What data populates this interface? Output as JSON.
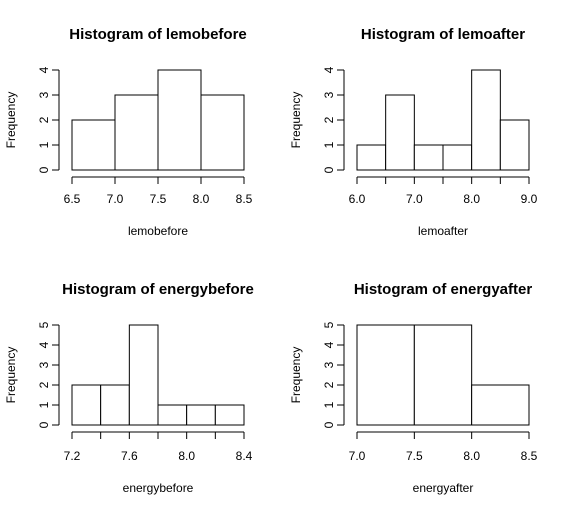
{
  "chart_data": [
    {
      "type": "bar",
      "title": "Histogram of lemobefore",
      "xlabel": "lemobefore",
      "ylabel": "Frequency",
      "bin_edges": [
        6.5,
        7.0,
        7.5,
        8.0,
        8.5
      ],
      "counts": [
        2,
        3,
        4,
        3
      ],
      "xticks": [
        6.5,
        7.0,
        7.5,
        8.0,
        8.5
      ],
      "xtick_labels": [
        "6.5",
        "7.0",
        "7.5",
        "8.0",
        "8.5"
      ],
      "yticks": [
        0,
        1,
        2,
        3,
        4
      ],
      "xlim": [
        6.5,
        8.5
      ],
      "ylim": [
        0,
        4
      ]
    },
    {
      "type": "bar",
      "title": "Histogram of lemoafter",
      "xlabel": "lemoafter",
      "ylabel": "Frequency",
      "bin_edges": [
        6.0,
        6.5,
        7.0,
        7.5,
        8.0,
        8.5,
        9.0
      ],
      "counts": [
        1,
        3,
        1,
        1,
        4,
        2
      ],
      "xticks": [
        6.0,
        6.5,
        7.0,
        7.5,
        8.0,
        8.5,
        9.0
      ],
      "xtick_labels": [
        "6.0",
        "",
        "7.0",
        "",
        "8.0",
        "",
        "9.0"
      ],
      "yticks": [
        0,
        1,
        2,
        3,
        4
      ],
      "xlim": [
        6.0,
        9.0
      ],
      "ylim": [
        0,
        4
      ]
    },
    {
      "type": "bar",
      "title": "Histogram of energybefore",
      "xlabel": "energybefore",
      "ylabel": "Frequency",
      "bin_edges": [
        7.2,
        7.4,
        7.6,
        7.8,
        8.0,
        8.2,
        8.4
      ],
      "counts": [
        2,
        2,
        5,
        1,
        1,
        1
      ],
      "xticks": [
        7.2,
        7.4,
        7.6,
        7.8,
        8.0,
        8.2,
        8.4
      ],
      "xtick_labels": [
        "7.2",
        "",
        "7.6",
        "",
        "8.0",
        "",
        "8.4"
      ],
      "yticks": [
        0,
        1,
        2,
        3,
        4,
        5
      ],
      "xlim": [
        7.2,
        8.4
      ],
      "ylim": [
        0,
        5
      ]
    },
    {
      "type": "bar",
      "title": "Histogram of energyafter",
      "xlabel": "energyafter",
      "ylabel": "Frequency",
      "bin_edges": [
        7.0,
        7.5,
        8.0,
        8.5
      ],
      "counts": [
        5,
        5,
        2
      ],
      "xticks": [
        7.0,
        7.5,
        8.0,
        8.5
      ],
      "xtick_labels": [
        "7.0",
        "7.5",
        "8.0",
        "8.5"
      ],
      "yticks": [
        0,
        1,
        2,
        3,
        4,
        5
      ],
      "xlim": [
        7.0,
        8.5
      ],
      "ylim": [
        0,
        5
      ]
    }
  ],
  "colors": {
    "bar_fill": "#ffffff",
    "bar_stroke": "#000000",
    "axis": "#000000",
    "background": "#ffffff"
  }
}
